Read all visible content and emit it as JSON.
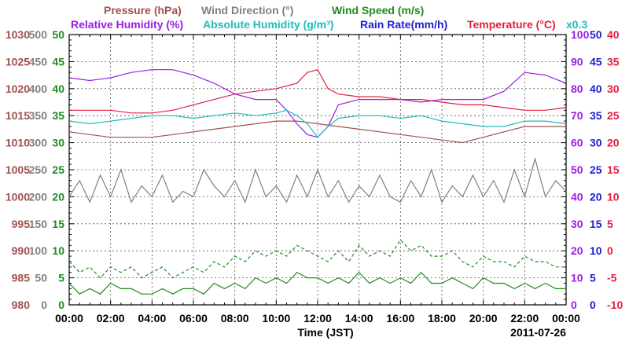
{
  "chart_data": {
    "type": "line",
    "legend": {
      "row1": [
        {
          "label": "Pressure (hPa)",
          "color": "#a0524e"
        },
        {
          "label": "Wind Direction (°)",
          "color": "#808080"
        },
        {
          "label": "Wind Speed (m/s)",
          "color": "#1e8c1e"
        }
      ],
      "row2": [
        {
          "label": "Relative Humidity (%)",
          "color": "#9a1ee6"
        },
        {
          "label": "Absolute Humidity (g/m³)",
          "color": "#1ebcbc"
        },
        {
          "label": "Rain Rate(mm/h)",
          "color": "#1e1ed2"
        },
        {
          "label": "Temperature (°C)",
          "color": "#e61e3c"
        }
      ],
      "multiplier": "x0.3",
      "multiplier_color": "#1ebcbc"
    },
    "xlabel": "Time (JST)",
    "date": "2011-07-26",
    "x_ticks": [
      "00:00",
      "02:00",
      "04:00",
      "06:00",
      "08:00",
      "10:00",
      "12:00",
      "14:00",
      "16:00",
      "18:00",
      "20:00",
      "22:00",
      "00:00"
    ],
    "xlim": [
      0,
      24
    ],
    "axes": {
      "pressure": {
        "ticks": [
          "980",
          "985",
          "990",
          "995",
          "1000",
          "1005",
          "1010",
          "1015",
          "1020",
          "1025",
          "1030"
        ],
        "color": "#a0524e",
        "ylim": [
          980,
          1030
        ]
      },
      "wind_direction": {
        "ticks": [
          "0",
          "50",
          "100",
          "150",
          "200",
          "250",
          "300",
          "350",
          "400",
          "450",
          "500"
        ],
        "color": "#808080",
        "ylim": [
          0,
          500
        ]
      },
      "wind_speed": {
        "ticks": [
          "0",
          "5",
          "10",
          "15",
          "20",
          "25",
          "30",
          "35",
          "40",
          "45",
          "50"
        ],
        "color": "#1e8c1e",
        "ylim": [
          0,
          50
        ]
      },
      "humidity": {
        "ticks": [
          "0",
          "10",
          "20",
          "30",
          "40",
          "50",
          "60",
          "70",
          "80",
          "90",
          "100"
        ],
        "color": "#9a1ee6",
        "ylim": [
          0,
          100
        ]
      },
      "rain_rate": {
        "ticks": [
          "0",
          "5",
          "10",
          "15",
          "20",
          "25",
          "30",
          "35",
          "40",
          "45",
          "50"
        ],
        "color": "#1e1ed2",
        "ylim": [
          0,
          50
        ]
      },
      "temperature": {
        "ticks": [
          "-10",
          "-5",
          "0",
          "5",
          "10",
          "15",
          "20",
          "25",
          "30",
          "35",
          "40"
        ],
        "color": "#e61e3c",
        "ylim": [
          -10,
          40
        ]
      }
    },
    "series": [
      {
        "name": "Pressure (hPa)",
        "axis": "pressure",
        "color": "#a0524e",
        "dash": "",
        "x": [
          0,
          1,
          2,
          3,
          4,
          5,
          6,
          7,
          8,
          9,
          10,
          11,
          12,
          13,
          14,
          15,
          16,
          17,
          18,
          19,
          20,
          21,
          22,
          23,
          24
        ],
        "y": [
          1012,
          1011.5,
          1011,
          1011,
          1011,
          1011.5,
          1012,
          1012.5,
          1013,
          1013.5,
          1014,
          1014,
          1013.5,
          1013,
          1012.5,
          1012,
          1011.5,
          1011,
          1010.5,
          1010,
          1011,
          1012,
          1013,
          1013,
          1013
        ]
      },
      {
        "name": "Relative Humidity (%)",
        "axis": "humidity",
        "color": "#9a1ee6",
        "dash": "",
        "x": [
          0,
          1,
          2,
          3,
          4,
          5,
          6,
          7,
          8,
          9,
          10,
          10.5,
          11,
          11.5,
          12,
          12.5,
          13,
          14,
          15,
          16,
          17,
          18,
          19,
          20,
          21,
          22,
          23,
          24
        ],
        "y": [
          84,
          83,
          84,
          86,
          87,
          87,
          85,
          82,
          78,
          76,
          76,
          72,
          67,
          63,
          62,
          66,
          74,
          76,
          76,
          76,
          75,
          76,
          76,
          76,
          79,
          86,
          85,
          82
        ]
      },
      {
        "name": "Absolute Humidity (g/m³)",
        "axis": "humidity",
        "color": "#1ebcbc",
        "dash": "",
        "x": [
          0,
          1,
          2,
          3,
          4,
          5,
          6,
          7,
          8,
          9,
          10,
          10.5,
          11,
          11.5,
          12,
          12.5,
          13,
          14,
          15,
          16,
          17,
          18,
          19,
          20,
          21,
          22,
          23,
          24
        ],
        "y": [
          68,
          67,
          68,
          69,
          70,
          70,
          69,
          70,
          71,
          70,
          71,
          72,
          70,
          67,
          62,
          66,
          69,
          70,
          70,
          69,
          70,
          68,
          67,
          66,
          66,
          68,
          68,
          67
        ]
      },
      {
        "name": "Temperature (°C)",
        "axis": "temperature",
        "color": "#e61e3c",
        "dash": "",
        "x": [
          0,
          1,
          2,
          3,
          4,
          5,
          6,
          7,
          8,
          9,
          10,
          11,
          11.5,
          12,
          12.5,
          13,
          14,
          15,
          16,
          17,
          18,
          19,
          20,
          21,
          22,
          23,
          24
        ],
        "y": [
          26,
          26,
          26,
          25.5,
          25.5,
          26,
          27,
          28,
          29,
          29.5,
          30,
          31,
          33,
          33.5,
          30,
          29,
          28.5,
          28.5,
          28,
          28,
          27.5,
          27,
          27,
          26.5,
          26,
          26,
          26.5
        ]
      },
      {
        "name": "Wind Direction (°)",
        "axis": "wind_direction",
        "color": "#808080",
        "dash": "",
        "x": [
          0,
          0.5,
          1,
          1.5,
          2,
          2.5,
          3,
          3.5,
          4,
          4.5,
          5,
          5.5,
          6,
          6.5,
          7,
          7.5,
          8,
          8.5,
          9,
          9.5,
          10,
          10.5,
          11,
          11.5,
          12,
          12.5,
          13,
          13.5,
          14,
          14.5,
          15,
          15.5,
          16,
          16.5,
          17,
          17.5,
          18,
          18.5,
          19,
          19.5,
          20,
          20.5,
          21,
          21.5,
          22,
          22.5,
          23,
          23.5,
          24
        ],
        "y": [
          200,
          230,
          190,
          240,
          200,
          250,
          190,
          220,
          200,
          240,
          190,
          210,
          200,
          250,
          220,
          200,
          230,
          190,
          250,
          200,
          220,
          190,
          240,
          200,
          250,
          200,
          230,
          190,
          220,
          200,
          240,
          200,
          190,
          230,
          200,
          250,
          190,
          220,
          200,
          240,
          200,
          230,
          190,
          250,
          200,
          270,
          200,
          230,
          210
        ]
      },
      {
        "name": "Wind Speed (m/s)",
        "axis": "wind_speed",
        "color": "#1e8c1e",
        "dash": "",
        "x": [
          0,
          0.5,
          1,
          1.5,
          2,
          2.5,
          3,
          3.5,
          4,
          4.5,
          5,
          5.5,
          6,
          6.5,
          7,
          7.5,
          8,
          8.5,
          9,
          9.5,
          10,
          10.5,
          11,
          11.5,
          12,
          12.5,
          13,
          13.5,
          14,
          14.5,
          15,
          15.5,
          16,
          16.5,
          17,
          17.5,
          18,
          18.5,
          19,
          19.5,
          20,
          20.5,
          21,
          21.5,
          22,
          22.5,
          23,
          23.5,
          24
        ],
        "y": [
          4,
          2,
          3,
          2,
          4,
          3,
          3,
          2,
          2,
          3,
          2,
          3,
          3,
          2,
          4,
          3,
          4,
          3,
          5,
          4,
          5,
          4,
          6,
          5,
          5,
          4,
          5,
          4,
          6,
          4,
          5,
          4,
          5,
          4,
          6,
          4,
          4,
          5,
          4,
          3,
          5,
          4,
          4,
          3,
          4,
          3,
          4,
          3,
          3
        ]
      },
      {
        "name": "Wind Speed (m/s)",
        "axis": "wind_speed",
        "color": "#1e8c1e",
        "dash": "4,3",
        "x": [
          0,
          0.5,
          1,
          1.5,
          2,
          2.5,
          3,
          3.5,
          4,
          4.5,
          5,
          5.5,
          6,
          6.5,
          7,
          7.5,
          8,
          8.5,
          9,
          9.5,
          10,
          10.5,
          11,
          11.5,
          12,
          12.5,
          13,
          13.5,
          14,
          14.5,
          15,
          15.5,
          16,
          16.5,
          17,
          17.5,
          18,
          18.5,
          19,
          19.5,
          20,
          20.5,
          21,
          21.5,
          22,
          22.5,
          23,
          23.5,
          24
        ],
        "y": [
          8,
          6,
          7,
          5,
          7,
          6,
          7,
          5,
          6,
          7,
          5,
          6,
          7,
          6,
          8,
          7,
          9,
          8,
          10,
          9,
          10,
          9,
          11,
          10,
          9,
          8,
          10,
          8,
          11,
          9,
          10,
          9,
          12,
          10,
          11,
          9,
          9,
          10,
          8,
          7,
          9,
          8,
          8,
          7,
          9,
          8,
          8,
          7,
          7
        ]
      }
    ]
  }
}
